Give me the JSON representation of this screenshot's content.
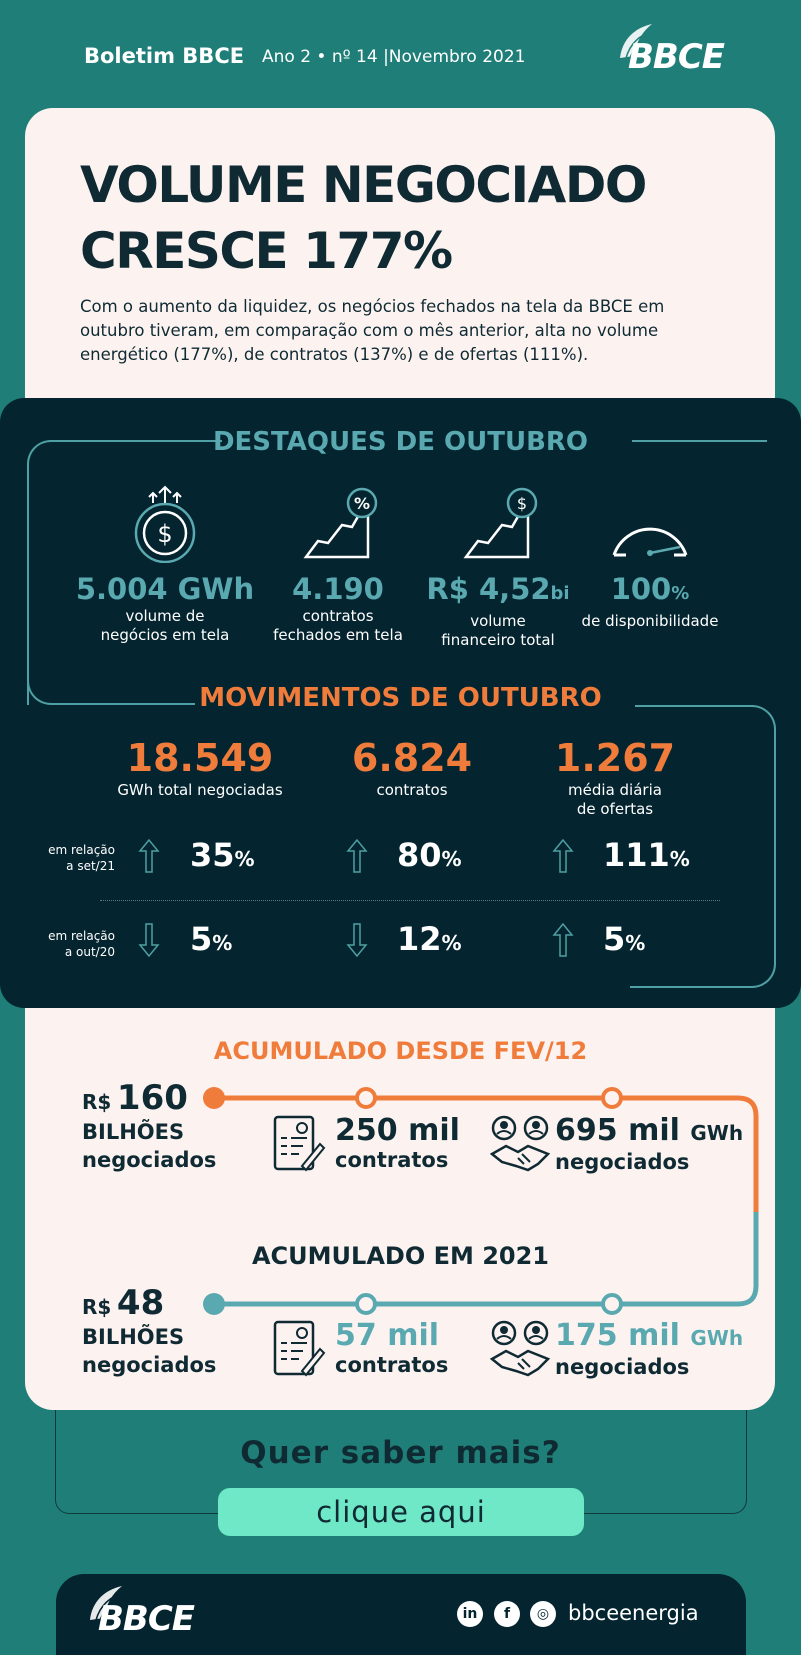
{
  "header": {
    "title": "Boletim BBCE",
    "issue": "Ano 2 • nº 14 |Novembro 2021",
    "logo_text": "BBCE"
  },
  "intro": {
    "headline_line1": "VOLUME NEGOCIADO",
    "headline_line2": "CRESCE 177%",
    "lead": "Com o aumento da liquidez, os negócios fechados na tela da BBCE em outubro tiveram, em comparação com o mês anterior, alta no volume energético (177%), de contratos (137%) e de ofertas (111%)."
  },
  "destaques": {
    "title": "DESTAQUES DE OUTUBRO",
    "items": [
      {
        "icon": "money-bag-icon",
        "value": "5.004 GWh",
        "unit": "",
        "label_line1": "volume de",
        "label_line2": "negócios em tela"
      },
      {
        "icon": "chart-percent-icon",
        "value": "4.190",
        "unit": "",
        "label_line1": "contratos",
        "label_line2": "fechados em tela"
      },
      {
        "icon": "chart-dollar-icon",
        "value": "R$ 4,52",
        "unit": "bi",
        "label_line1": "volume",
        "label_line2": "financeiro total"
      },
      {
        "icon": "gauge-icon",
        "value": "100",
        "unit": "%",
        "label_line1": "de disponibilidade",
        "label_line2": ""
      }
    ]
  },
  "movimentos": {
    "title": "MOVIMENTOS DE OUTUBRO",
    "items": [
      {
        "value": "18.549",
        "label_line1": "GWh total negociadas",
        "label_line2": ""
      },
      {
        "value": "6.824",
        "label_line1": "contratos",
        "label_line2": ""
      },
      {
        "value": "1.267",
        "label_line1": "média diária",
        "label_line2": "de ofertas"
      }
    ],
    "rows": [
      {
        "label_line1": "em relação",
        "label_line2": "a set/21",
        "values": [
          {
            "num": "35",
            "sign": "%",
            "dir": "up"
          },
          {
            "num": "80",
            "sign": "%",
            "dir": "up"
          },
          {
            "num": "111",
            "sign": "%",
            "dir": "up"
          }
        ]
      },
      {
        "label_line1": "em relação",
        "label_line2": "a out/20",
        "values": [
          {
            "num": "5",
            "sign": "%",
            "dir": "down"
          },
          {
            "num": "12",
            "sign": "%",
            "dir": "down"
          },
          {
            "num": "5",
            "sign": "%",
            "dir": "up"
          }
        ]
      }
    ]
  },
  "acumulado_total": {
    "title": "ACUMULADO DESDE FEV/12",
    "currency": "R$",
    "amount": "160",
    "desc_line1": "BILHÕES",
    "desc_line2": "negociados",
    "contracts_value": "250 mil",
    "contracts_label": "contratos",
    "energy_value": "695 mil",
    "energy_unit": "GWh",
    "energy_label": "negociados"
  },
  "acumulado_2021": {
    "title": "ACUMULADO EM 2021",
    "currency": "R$",
    "amount": "48",
    "desc_line1": "BILHÕES",
    "desc_line2": "negociados",
    "contracts_value": "57 mil",
    "contracts_label": "contratos",
    "energy_value": "175 mil",
    "energy_unit": "GWh",
    "energy_label": "negociados"
  },
  "cta": {
    "question": "Quer saber mais?",
    "button": "clique aqui"
  },
  "footer": {
    "logo_text": "BBCE",
    "social": [
      "in",
      "f",
      "◎"
    ],
    "handle": "bbceenergia"
  },
  "colors": {
    "teal_bg": "#1f7f78",
    "dark": "#04242f",
    "cream": "#fcf3f1",
    "orange": "#f07c3c",
    "teal_accent": "#5aa9b0",
    "cta_green": "#6ee8c6"
  }
}
